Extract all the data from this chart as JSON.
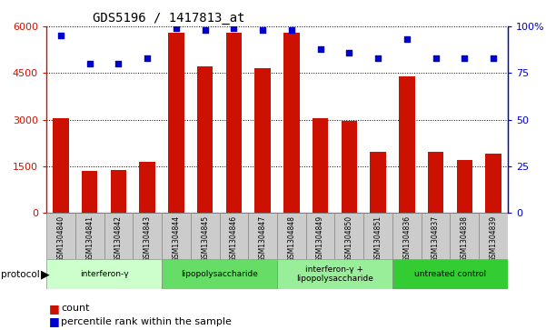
{
  "title": "GDS5196 / 1417813_at",
  "samples": [
    "GSM1304840",
    "GSM1304841",
    "GSM1304842",
    "GSM1304843",
    "GSM1304844",
    "GSM1304845",
    "GSM1304846",
    "GSM1304847",
    "GSM1304848",
    "GSM1304849",
    "GSM1304850",
    "GSM1304851",
    "GSM1304836",
    "GSM1304837",
    "GSM1304838",
    "GSM1304839"
  ],
  "counts": [
    3050,
    1350,
    1380,
    1630,
    5800,
    4700,
    5800,
    4650,
    5800,
    3050,
    2950,
    1950,
    4400,
    1950,
    1700,
    1900
  ],
  "percentiles": [
    95,
    80,
    80,
    83,
    99,
    98,
    99,
    98,
    98,
    88,
    86,
    83,
    93,
    83,
    83,
    83
  ],
  "groups": [
    {
      "label": "interferon-γ",
      "start": 0,
      "end": 4,
      "color": "#ccffcc"
    },
    {
      "label": "lipopolysaccharide",
      "start": 4,
      "end": 8,
      "color": "#66dd66"
    },
    {
      "label": "interferon-γ +\nlipopolysaccharide",
      "start": 8,
      "end": 12,
      "color": "#99ee99"
    },
    {
      "label": "untreated control",
      "start": 12,
      "end": 16,
      "color": "#33cc33"
    }
  ],
  "bar_color": "#cc1100",
  "dot_color": "#0000cc",
  "ylim_left": [
    0,
    6000
  ],
  "ylim_right": [
    0,
    100
  ],
  "yticks_left": [
    0,
    1500,
    3000,
    4500,
    6000
  ],
  "yticks_right": [
    0,
    25,
    50,
    75,
    100
  ],
  "bg_color": "#ffffff",
  "sample_box_color": "#cccccc",
  "legend_count_label": "count",
  "legend_percentile_label": "percentile rank within the sample"
}
